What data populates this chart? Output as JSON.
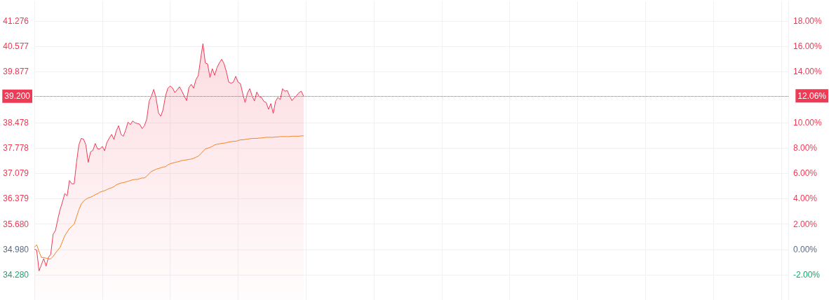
{
  "chart_data": {
    "type": "area",
    "categories": [
      null,
      null,
      null,
      null,
      null,
      null,
      null,
      null,
      null,
      null,
      null,
      null,
      null,
      null,
      null,
      null,
      null,
      null,
      null,
      null,
      null,
      null,
      null,
      null,
      null,
      null,
      null,
      null,
      null,
      null,
      null,
      null,
      null,
      null,
      null,
      null,
      null,
      null,
      null,
      null,
      null,
      null,
      null,
      null,
      null,
      null,
      null,
      null,
      null,
      null,
      null,
      null,
      null,
      null,
      null,
      null,
      null,
      null,
      null,
      null,
      null,
      null,
      null,
      null,
      null,
      null,
      null,
      null,
      null,
      null,
      null,
      null,
      null,
      null,
      null,
      null,
      null,
      null,
      null,
      null,
      null,
      null,
      null,
      null,
      null,
      null,
      null,
      null,
      null,
      null,
      null,
      null,
      null,
      null,
      null,
      null,
      null,
      null,
      null,
      null,
      null,
      null,
      null,
      null,
      null,
      null,
      null,
      null,
      null,
      null,
      null,
      null,
      null,
      null,
      null,
      null,
      null,
      null,
      null,
      null,
      null,
      null,
      null,
      null,
      null,
      null,
      null,
      null,
      null,
      null,
      null,
      null,
      null,
      null,
      null,
      null,
      null,
      null,
      null,
      null,
      null,
      null,
      null,
      null,
      null,
      null,
      null,
      null,
      null,
      null,
      null,
      null,
      null,
      null,
      null,
      null,
      null,
      null,
      null,
      null,
      null,
      null,
      null,
      null,
      null,
      null,
      null,
      null,
      null,
      null,
      null,
      null,
      null,
      null,
      null,
      null,
      null,
      null,
      null,
      null,
      null,
      null,
      null,
      null,
      null,
      null,
      null,
      null,
      null,
      null,
      null,
      null,
      null,
      null,
      null,
      null,
      null,
      null,
      null,
      null,
      null,
      null,
      null,
      null,
      null,
      null,
      null,
      null,
      null,
      null,
      null,
      null,
      null,
      null,
      null,
      null,
      null,
      null,
      null,
      null,
      null,
      null,
      null,
      null,
      null,
      null,
      null,
      null,
      null,
      null,
      null,
      null,
      null,
      null,
      null,
      null,
      null,
      null,
      null,
      null,
      null,
      null,
      null,
      null,
      null,
      null,
      null,
      null,
      null,
      null,
      null,
      null,
      null,
      null,
      null,
      null,
      null,
      null,
      null,
      null,
      null,
      null,
      null,
      null,
      null,
      null,
      null,
      null,
      null,
      null,
      null,
      null,
      null,
      null,
      null,
      null,
      null,
      null,
      null,
      null,
      null,
      null,
      null,
      null,
      null,
      null,
      null,
      null,
      null,
      null,
      null,
      null,
      null,
      null,
      null,
      null,
      null,
      null,
      null,
      null,
      null,
      null,
      null,
      null,
      null,
      null,
      null,
      null,
      null,
      null,
      null,
      null,
      null,
      null,
      null,
      null,
      null,
      null,
      null,
      null,
      null,
      null,
      null
    ],
    "series": [
      {
        "type": "area",
        "color": "#ef3a55",
        "values": [
          34.99,
          34.96,
          34.39,
          34.56,
          34.73,
          34.52,
          34.76,
          34.85,
          35.4,
          35.5,
          35.81,
          36.08,
          36.29,
          36.52,
          36.46,
          36.88,
          36.79,
          36.79,
          37.38,
          37.86,
          38.04,
          38.02,
          37.86,
          37.38,
          37.67,
          37.71,
          37.9,
          37.75,
          37.75,
          37.82,
          37.7,
          37.93,
          38.05,
          38.15,
          38.01,
          38.25,
          38.39,
          38.15,
          38.1,
          38.27,
          38.49,
          38.42,
          38.52,
          38.47,
          38.45,
          38.43,
          38.31,
          38.39,
          38.57,
          39.06,
          39.21,
          39.39,
          39.14,
          38.74,
          38.65,
          38.84,
          39.21,
          39.42,
          39.48,
          39.43,
          39.3,
          39.38,
          39.46,
          39.34,
          39.21,
          39.08,
          39.44,
          39.53,
          39.42,
          39.66,
          39.77,
          40.23,
          40.65,
          40.12,
          40.09,
          39.72,
          39.96,
          39.78,
          39.99,
          40.12,
          40.22,
          40.1,
          39.88,
          39.59,
          39.56,
          39.59,
          39.75,
          39.59,
          39.55,
          39.27,
          39.03,
          39.29,
          39.41,
          39.21,
          39.07,
          39.32,
          39.19,
          39.17,
          39.06,
          39.03,
          38.84,
          39.0,
          38.73,
          39.06,
          39.17,
          39.11,
          39.41,
          39.34,
          39.36,
          39.21,
          39.08,
          39.16,
          39.22,
          39.3,
          39.34,
          39.2,
          null,
          null,
          null,
          null,
          null,
          null,
          null,
          null,
          null,
          null,
          null,
          null,
          null,
          null,
          null,
          null,
          null,
          null,
          null,
          null,
          null,
          null,
          null,
          null,
          null,
          null,
          null,
          null,
          null,
          null,
          null,
          null,
          null,
          null,
          null,
          null,
          null,
          null,
          null,
          null,
          null,
          null,
          null,
          null,
          null,
          null,
          null,
          null,
          null,
          null,
          null,
          null,
          null,
          null,
          null,
          null,
          null,
          null,
          null,
          null,
          null,
          null,
          null,
          null,
          null,
          null,
          null,
          null,
          null,
          null,
          null,
          null,
          null,
          null,
          null,
          null,
          null,
          null,
          null,
          null,
          null,
          null,
          null,
          null,
          null,
          null,
          null,
          null,
          null,
          null,
          null,
          null,
          null,
          null,
          null,
          null,
          null,
          null,
          null,
          null,
          null,
          null,
          null,
          null,
          null,
          null,
          null,
          null,
          null,
          null,
          null,
          null,
          null,
          null,
          null,
          null,
          null,
          null,
          null,
          null,
          null,
          null,
          null,
          null,
          null,
          null,
          null,
          null,
          null,
          null,
          null,
          null,
          null,
          null,
          null,
          null,
          null,
          null,
          null,
          null,
          null,
          null,
          null,
          null,
          null,
          null,
          null,
          null,
          null,
          null,
          null,
          null,
          null,
          null,
          null,
          null,
          null,
          null,
          null,
          null,
          null,
          null,
          null,
          null,
          null,
          null,
          null,
          null,
          null,
          null,
          null,
          null,
          null,
          null,
          null,
          null,
          null,
          null,
          null,
          null,
          null,
          null,
          null,
          null,
          null,
          null,
          null,
          null,
          null,
          null,
          null,
          null,
          null,
          null,
          null,
          null,
          null,
          null,
          null,
          null,
          null,
          null,
          null,
          null,
          null,
          null,
          null
        ]
      },
      {
        "type": "line",
        "color": "#f5821f",
        "values": [
          35.04,
          35.11,
          34.92,
          34.76,
          34.76,
          34.74,
          34.72,
          34.72,
          34.79,
          34.88,
          34.96,
          35.04,
          35.2,
          35.36,
          35.46,
          35.56,
          35.62,
          35.68,
          35.88,
          36.07,
          36.23,
          36.31,
          36.36,
          36.4,
          36.42,
          36.45,
          36.49,
          36.52,
          36.56,
          36.58,
          36.6,
          36.63,
          36.66,
          36.68,
          36.71,
          36.76,
          36.79,
          36.81,
          36.82,
          36.84,
          36.86,
          36.88,
          36.9,
          36.91,
          36.91,
          36.93,
          36.95,
          36.95,
          37.0,
          37.07,
          37.13,
          37.16,
          37.19,
          37.21,
          37.23,
          37.25,
          37.26,
          37.31,
          37.34,
          37.36,
          37.38,
          37.39,
          37.41,
          37.43,
          37.44,
          37.45,
          37.46,
          37.47,
          37.49,
          37.52,
          37.55,
          37.61,
          37.68,
          37.75,
          37.77,
          37.79,
          37.82,
          37.86,
          37.88,
          37.89,
          37.9,
          37.91,
          37.92,
          37.94,
          37.95,
          37.96,
          37.96,
          37.98,
          38.0,
          38.0,
          38.01,
          38.02,
          38.03,
          38.04,
          38.04,
          38.04,
          38.05,
          38.05,
          38.06,
          38.07,
          38.07,
          38.07,
          38.07,
          38.08,
          38.08,
          38.09,
          38.09,
          38.09,
          38.09,
          38.09,
          38.1,
          38.1,
          38.1,
          38.1,
          38.11,
          38.11,
          null,
          null,
          null,
          null,
          null,
          null,
          null,
          null,
          null,
          null,
          null,
          null,
          null,
          null,
          null,
          null,
          null,
          null,
          null,
          null,
          null,
          null,
          null,
          null,
          null,
          null,
          null,
          null,
          null,
          null,
          null,
          null,
          null,
          null,
          null,
          null,
          null,
          null,
          null,
          null,
          null,
          null,
          null,
          null,
          null,
          null,
          null,
          null,
          null,
          null,
          null,
          null,
          null,
          null,
          null,
          null,
          null,
          null,
          null,
          null,
          null,
          null,
          null,
          null,
          null,
          null,
          null,
          null,
          null,
          null,
          null,
          null,
          null,
          null,
          null,
          null,
          null,
          null,
          null,
          null,
          null,
          null,
          null,
          null,
          null,
          null,
          null,
          null,
          null,
          null,
          null,
          null,
          null,
          null,
          null,
          null,
          null,
          null,
          null,
          null,
          null,
          null,
          null,
          null,
          null,
          null,
          null,
          null,
          null,
          null,
          null,
          null,
          null,
          null,
          null,
          null,
          null,
          null,
          null,
          null,
          null,
          null,
          null,
          null,
          null,
          null,
          null,
          null,
          null,
          null,
          null,
          null,
          null,
          null,
          null,
          null,
          null,
          null,
          null,
          null,
          null,
          null,
          null,
          null,
          null,
          null,
          null,
          null,
          null,
          null,
          null,
          null,
          null,
          null,
          null,
          null,
          null,
          null,
          null,
          null,
          null,
          null,
          null,
          null,
          null,
          null,
          null,
          null,
          null,
          null,
          null,
          null,
          null,
          null,
          null,
          null,
          null,
          null,
          null,
          null,
          null,
          null,
          null,
          null,
          null,
          null,
          null,
          null,
          null,
          null,
          null,
          null,
          null,
          null,
          null,
          null,
          null,
          null,
          null,
          null,
          null,
          null,
          null,
          null,
          null,
          null,
          null
        ]
      }
    ],
    "ylim": [
      33.588,
      41.814
    ],
    "yticks": [
      {
        "value": 34.28,
        "label": "34.280"
      },
      {
        "value": 34.98,
        "label": "34.980"
      },
      {
        "value": 35.68,
        "label": "35.680"
      },
      {
        "value": 36.379,
        "label": "36.379"
      },
      {
        "value": 37.079,
        "label": "37.079"
      },
      {
        "value": 37.778,
        "label": "37.778"
      },
      {
        "value": 38.478,
        "label": "38.478"
      },
      {
        "value": 39.877,
        "label": "39.877"
      },
      {
        "value": 40.577,
        "label": "40.577"
      },
      {
        "value": 41.276,
        "label": "41.276"
      }
    ],
    "y2lim": [
      -3.979,
      19.537
    ],
    "y2ticks": [
      {
        "value": -2,
        "label": "-2.00%"
      },
      {
        "value": 0,
        "label": "0.00%"
      },
      {
        "value": 2,
        "label": "2.00%"
      },
      {
        "value": 4,
        "label": "4.00%"
      },
      {
        "value": 6,
        "label": "6.00%"
      },
      {
        "value": 8,
        "label": "8.00%"
      },
      {
        "value": 10,
        "label": "10.00%"
      },
      {
        "value": 14,
        "label": "14.00%"
      },
      {
        "value": 16,
        "label": "16.00%"
      },
      {
        "value": 18,
        "label": "18.00%"
      }
    ],
    "ref_lines": [
      {
        "axis": "y",
        "value": 39.2,
        "label": "39.200",
        "color": "#ef3a55",
        "line_style": "dotted"
      }
    ],
    "annotations": [
      "12.06%"
    ],
    "grid": true,
    "marker": "none"
  }
}
